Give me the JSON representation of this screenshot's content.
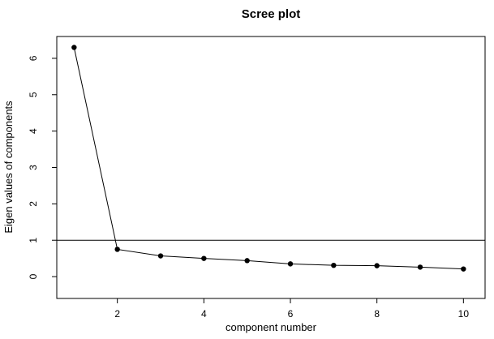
{
  "chart_data": {
    "type": "line",
    "title": "Scree plot",
    "x_label": "component number",
    "y_label": "Eigen values of components",
    "x": [
      1,
      2,
      3,
      4,
      5,
      6,
      7,
      8,
      9,
      10
    ],
    "values": [
      6.3,
      0.75,
      0.57,
      0.5,
      0.44,
      0.35,
      0.31,
      0.3,
      0.26,
      0.21
    ],
    "color": "#000000",
    "xlim": [
      0.6,
      10.5
    ],
    "xticks": [
      2,
      4,
      6,
      8,
      10
    ],
    "ylim": [
      -0.6,
      6.6
    ],
    "yticks": [
      0,
      1,
      2,
      3,
      4,
      5,
      6
    ],
    "hline": 1
  }
}
